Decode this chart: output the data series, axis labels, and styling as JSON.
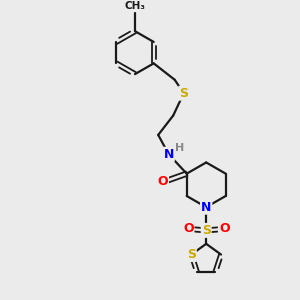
{
  "bg_color": "#ebebeb",
  "bond_color": "#1a1a1a",
  "atom_colors": {
    "S": "#ccaa00",
    "N": "#0000ff",
    "O": "#ff0000",
    "H": "#888888",
    "C": "#1a1a1a"
  },
  "figsize": [
    3.0,
    3.0
  ],
  "dpi": 100,
  "xlim": [
    0,
    10
  ],
  "ylim": [
    0,
    10
  ]
}
